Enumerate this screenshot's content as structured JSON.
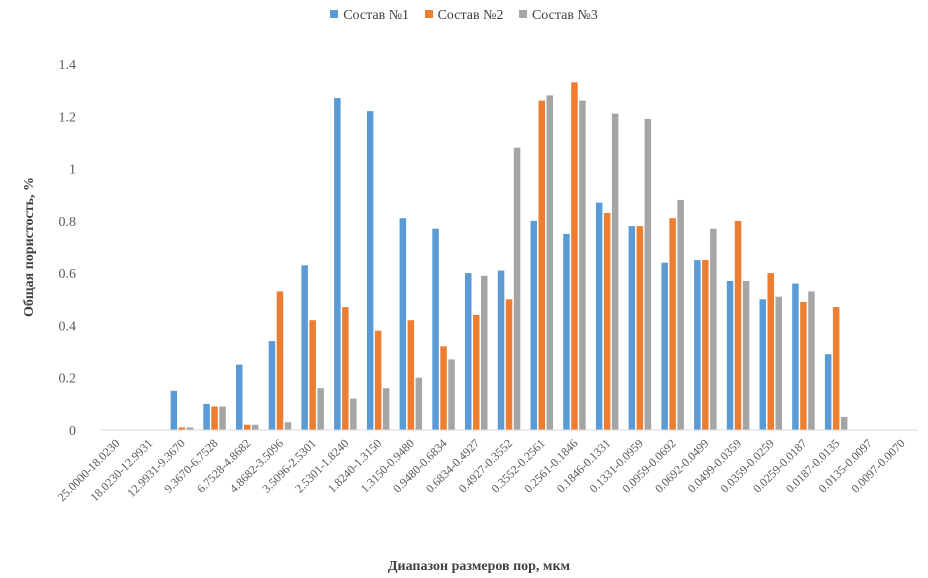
{
  "chart_data": {
    "type": "bar",
    "title": "",
    "xlabel": "Диапазон размеров пор, мкм",
    "ylabel": "Общая пористость, %",
    "ylim": [
      0,
      1.4
    ],
    "yticks": [
      "0",
      "0.2",
      "0.4",
      "0.6",
      "0.8",
      "1",
      "1.2",
      "1.4"
    ],
    "grid": false,
    "legend_position": "top-center",
    "categories": [
      "25.0000-18.0230",
      "18.0230-12.9931",
      "12.9931-9.3670",
      "9.3670-6.7528",
      "6.7528-4.8682",
      "4.8682-3.5096",
      "3.5096-2.5301",
      "2.5301-1.8240",
      "1.8240-1.3150",
      "1.3150-0.9480",
      "0.9480-0.6834",
      "0.6834-0.4927",
      "0.4927-0.3552",
      "0.3552-0.2561",
      "0.2561-0.1846",
      "0.1846-0.1331",
      "0.1331-0.0959",
      "0.0959-0.0692",
      "0.0692-0.0499",
      "0.0499-0.0359",
      "0.0359-0.0259",
      "0.0259-0.0187",
      "0.0187-0.0135",
      "0.0135-0.0097",
      "0.0097-0.0070"
    ],
    "series": [
      {
        "name": "Состав №1",
        "color": "#5b9bd5",
        "values": [
          0,
          0,
          0.15,
          0.1,
          0.25,
          0.34,
          0.63,
          1.27,
          1.22,
          0.81,
          0.77,
          0.6,
          0.61,
          0.8,
          0.75,
          0.87,
          0.78,
          0.64,
          0.65,
          0.57,
          0.5,
          0.56,
          0.29,
          0,
          0
        ]
      },
      {
        "name": "Состав №2",
        "color": "#ed7d31",
        "values": [
          0,
          0,
          0.01,
          0.09,
          0.02,
          0.53,
          0.42,
          0.47,
          0.38,
          0.42,
          0.32,
          0.44,
          0.5,
          1.26,
          1.33,
          0.83,
          0.78,
          0.81,
          0.65,
          0.8,
          0.6,
          0.49,
          0.47,
          0,
          0
        ]
      },
      {
        "name": "Состав №3",
        "color": "#a5a5a5",
        "values": [
          0,
          0,
          0.01,
          0.09,
          0.02,
          0.03,
          0.16,
          0.12,
          0.16,
          0.2,
          0.27,
          0.59,
          1.08,
          1.28,
          1.26,
          1.21,
          1.19,
          0.88,
          0.77,
          0.57,
          0.51,
          0.53,
          0.05,
          0,
          0
        ]
      }
    ]
  }
}
